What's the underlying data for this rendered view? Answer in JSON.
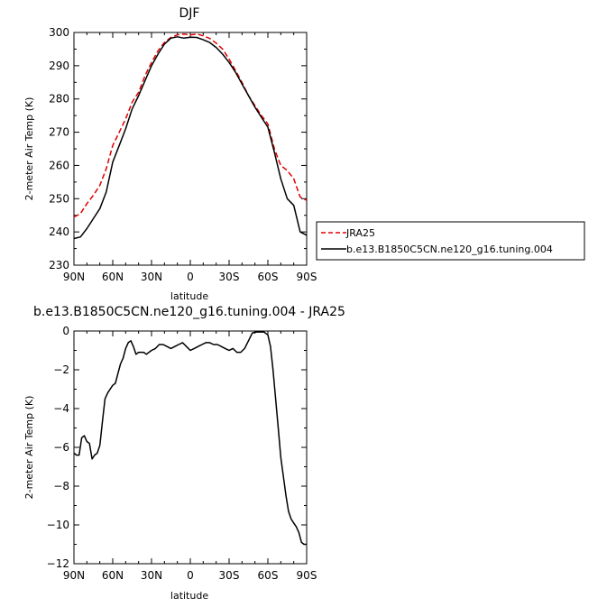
{
  "chart_data": [
    {
      "type": "line",
      "title": "DJF",
      "xlabel": "latitude",
      "ylabel": "2-meter Air Temp (K)",
      "xlim": [
        -90,
        90
      ],
      "ylim": [
        230,
        300
      ],
      "xticks": [
        -90,
        -60,
        -30,
        0,
        30,
        60,
        90
      ],
      "xtick_labels": [
        "90N",
        "60N",
        "30N",
        "0",
        "30S",
        "60S",
        "90S"
      ],
      "yticks": [
        230,
        240,
        250,
        260,
        270,
        280,
        290,
        300
      ],
      "grid": false,
      "legend_placement": "right",
      "series": [
        {
          "name": "JRA25",
          "color": "#e00000",
          "dash": "dashed",
          "x": [
            -90,
            -85,
            -80,
            -75,
            -70,
            -65,
            -60,
            -55,
            -50,
            -45,
            -40,
            -35,
            -30,
            -25,
            -20,
            -15,
            -10,
            -5,
            0,
            5,
            10,
            15,
            20,
            25,
            30,
            35,
            40,
            45,
            50,
            55,
            60,
            65,
            70,
            75,
            80,
            85,
            90
          ],
          "y": [
            244.5,
            245.5,
            248.5,
            251,
            254,
            259,
            266,
            270,
            274,
            279,
            282,
            287,
            291,
            294.5,
            297,
            298.5,
            299.3,
            299.5,
            299.3,
            299.5,
            299,
            298.2,
            296.8,
            295,
            292,
            288.5,
            285,
            281,
            278,
            275,
            272.5,
            265,
            260,
            258.5,
            256,
            250.5,
            249.5
          ]
        },
        {
          "name": "b.e13.B1850C5CN.ne120_g16.tuning.004",
          "color": "#000000",
          "dash": "solid",
          "x": [
            -90,
            -85,
            -80,
            -75,
            -70,
            -65,
            -60,
            -55,
            -50,
            -45,
            -40,
            -35,
            -30,
            -25,
            -20,
            -15,
            -10,
            -5,
            0,
            5,
            10,
            15,
            20,
            25,
            30,
            35,
            40,
            45,
            50,
            55,
            60,
            65,
            70,
            75,
            80,
            85,
            90
          ],
          "y": [
            238,
            238.5,
            241,
            244,
            247,
            252,
            261,
            266,
            271,
            277,
            281,
            285.5,
            290,
            293.5,
            296.5,
            298.3,
            298.7,
            298.3,
            298.6,
            298.5,
            297.8,
            297,
            295.5,
            293.5,
            291,
            288,
            284.5,
            281,
            277.5,
            274.5,
            271.5,
            264,
            256,
            250,
            248,
            240,
            239
          ]
        }
      ]
    },
    {
      "type": "line",
      "title": "b.e13.B1850C5CN.ne120_g16.tuning.004 - JRA25",
      "xlabel": "latitude",
      "ylabel": "2-meter Air Temp (K)",
      "xlim": [
        -90,
        90
      ],
      "ylim": [
        -12,
        0
      ],
      "xticks": [
        -90,
        -60,
        -30,
        0,
        30,
        60,
        90
      ],
      "xtick_labels": [
        "90N",
        "60N",
        "30N",
        "0",
        "30S",
        "60S",
        "90S"
      ],
      "yticks": [
        -12,
        -10,
        -8,
        -6,
        -4,
        -2,
        0
      ],
      "grid": false,
      "series": [
        {
          "color": "#000000",
          "dash": "solid",
          "x": [
            -90,
            -88,
            -86,
            -84,
            -82,
            -80,
            -78,
            -76,
            -74,
            -72,
            -70,
            -68,
            -66,
            -64,
            -62,
            -60,
            -58,
            -56,
            -54,
            -52,
            -50,
            -48,
            -46,
            -44,
            -42,
            -40,
            -38,
            -36,
            -34,
            -32,
            -30,
            -27,
            -24,
            -21,
            -18,
            -15,
            -12,
            -9,
            -6,
            -3,
            0,
            3,
            6,
            9,
            12,
            15,
            18,
            21,
            24,
            27,
            30,
            33,
            36,
            39,
            42,
            45,
            48,
            51,
            54,
            57,
            60,
            62,
            64,
            66,
            68,
            70,
            72,
            74,
            76,
            78,
            80,
            82,
            84,
            86,
            88,
            90
          ],
          "y": [
            -6.3,
            -6.4,
            -6.4,
            -5.5,
            -5.4,
            -5.7,
            -5.8,
            -6.6,
            -6.4,
            -6.3,
            -5.9,
            -4.7,
            -3.5,
            -3.2,
            -3.0,
            -2.8,
            -2.7,
            -2.2,
            -1.7,
            -1.4,
            -0.9,
            -0.6,
            -0.5,
            -0.8,
            -1.2,
            -1.1,
            -1.1,
            -1.1,
            -1.2,
            -1.1,
            -1.0,
            -0.9,
            -0.7,
            -0.7,
            -0.8,
            -0.9,
            -0.8,
            -0.7,
            -0.6,
            -0.8,
            -1.0,
            -0.9,
            -0.8,
            -0.7,
            -0.6,
            -0.6,
            -0.7,
            -0.7,
            -0.8,
            -0.9,
            -1.0,
            -0.9,
            -1.1,
            -1.1,
            -0.9,
            -0.5,
            -0.1,
            -0.05,
            -0.05,
            -0.05,
            -0.2,
            -0.8,
            -2.0,
            -3.5,
            -5.0,
            -6.5,
            -7.5,
            -8.5,
            -9.3,
            -9.7,
            -9.9,
            -10.1,
            -10.4,
            -10.9,
            -11.0,
            -11.0
          ]
        }
      ]
    }
  ]
}
